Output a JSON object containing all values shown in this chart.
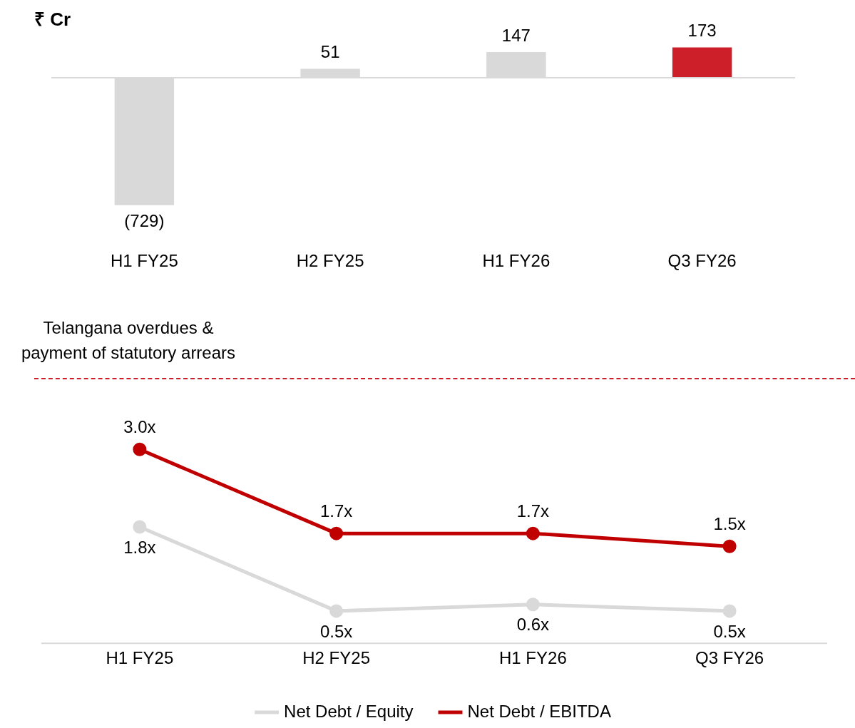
{
  "chart_data": [
    {
      "type": "bar",
      "title": "₹ Cr",
      "categories": [
        "H1 FY25",
        "H2 FY25",
        "H1 FY26",
        "Q3 FY26"
      ],
      "values": [
        -729,
        51,
        147,
        173
      ],
      "colors": [
        "#d9d9d9",
        "#d9d9d9",
        "#d9d9d9",
        "#cc1f2a"
      ],
      "value_labels": [
        "(729)",
        "51",
        "147",
        "173"
      ],
      "tick_labels": "x",
      "grid": false,
      "legend": false,
      "annotations": [
        "Telangana overdues &\npayment of statutory arrears"
      ]
    },
    {
      "type": "line",
      "categories": [
        "H1 FY25",
        "H2 FY25",
        "H1 FY26",
        "Q3 FY26"
      ],
      "series": [
        {
          "name": "Net Debt / Equity",
          "color": "#d9d9d9",
          "values": [
            1.8,
            0.5,
            0.6,
            0.5
          ],
          "value_labels": [
            "1.8x",
            "0.5x",
            "0.6x",
            "0.5x"
          ]
        },
        {
          "name": "Net Debt / EBITDA",
          "color": "#c00000",
          "values": [
            3.0,
            1.7,
            1.7,
            1.5
          ],
          "value_labels": [
            "3.0x",
            "1.7x",
            "1.7x",
            "1.5x"
          ]
        }
      ],
      "marker": "circle",
      "line_style": "solid",
      "tick_labels": "x",
      "grid": false,
      "legend": "bottom"
    }
  ]
}
